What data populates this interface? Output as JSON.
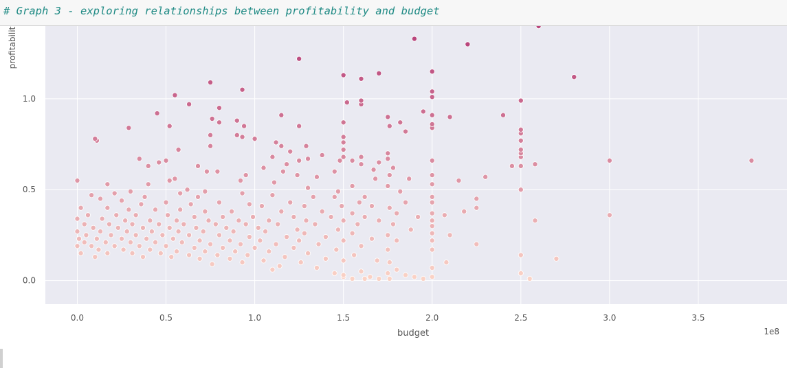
{
  "notebook": {
    "cell_comment": "# Graph 3 - exploring relationships between profitability and budget"
  },
  "colors": {
    "plot_background": "#eaeaf2",
    "grid": "#ffffff",
    "low_value_color": "#fbd3c6",
    "high_value_color": "#b9467c",
    "marker_edge": "#ffffff"
  },
  "chart_data": {
    "type": "scatter",
    "title": "",
    "xlabel": "budget",
    "ylabel": "profitability",
    "x_offset_label": "1e8",
    "x_unit_multiplier": 100000000,
    "xlim": [
      -0.18,
      4.0
    ],
    "ylim": [
      -0.13,
      1.4
    ],
    "x_ticks": [
      0.0,
      0.5,
      1.0,
      1.5,
      2.0,
      2.5,
      3.0,
      3.5
    ],
    "x_tick_labels": [
      "0.0",
      "0.5",
      "1.0",
      "1.5",
      "2.0",
      "2.5",
      "3.0",
      "3.5"
    ],
    "y_ticks": [
      0.0,
      0.5,
      1.0
    ],
    "y_tick_labels": [
      "0.0",
      "0.5",
      "1.0"
    ],
    "grid": true,
    "hue": "profitability",
    "points": [
      [
        2.6,
        1.4
      ],
      [
        1.9,
        1.33
      ],
      [
        2.2,
        1.3
      ],
      [
        1.25,
        1.22
      ],
      [
        1.7,
        1.14
      ],
      [
        1.5,
        1.13
      ],
      [
        2.0,
        1.15
      ],
      [
        2.8,
        1.12
      ],
      [
        1.6,
        1.11
      ],
      [
        0.75,
        1.09
      ],
      [
        0.93,
        1.05
      ],
      [
        2.0,
        1.04
      ],
      [
        0.55,
        1.02
      ],
      [
        2.0,
        1.01
      ],
      [
        1.6,
        0.99
      ],
      [
        2.5,
        0.99
      ],
      [
        1.52,
        0.98
      ],
      [
        1.6,
        0.97
      ],
      [
        0.63,
        0.97
      ],
      [
        0.8,
        0.95
      ],
      [
        1.95,
        0.93
      ],
      [
        0.45,
        0.92
      ],
      [
        1.15,
        0.91
      ],
      [
        2.4,
        0.91
      ],
      [
        2.0,
        0.91
      ],
      [
        1.75,
        0.9
      ],
      [
        2.1,
        0.9
      ],
      [
        0.76,
        0.89
      ],
      [
        0.9,
        0.88
      ],
      [
        0.8,
        0.87
      ],
      [
        1.82,
        0.87
      ],
      [
        2.0,
        0.86
      ],
      [
        1.25,
        0.85
      ],
      [
        1.5,
        0.87
      ],
      [
        0.52,
        0.85
      ],
      [
        0.94,
        0.85
      ],
      [
        1.76,
        0.85
      ],
      [
        0.29,
        0.84
      ],
      [
        2.0,
        0.84
      ],
      [
        2.5,
        0.83
      ],
      [
        1.85,
        0.82
      ],
      [
        2.5,
        0.81
      ],
      [
        0.9,
        0.8
      ],
      [
        0.75,
        0.8
      ],
      [
        0.93,
        0.79
      ],
      [
        1.0,
        0.78
      ],
      [
        1.5,
        0.79
      ],
      [
        0.1,
        0.78
      ],
      [
        0.11,
        0.77
      ],
      [
        2.5,
        0.77
      ],
      [
        1.5,
        0.76
      ],
      [
        1.12,
        0.76
      ],
      [
        0.75,
        0.74
      ],
      [
        1.15,
        0.74
      ],
      [
        1.29,
        0.74
      ],
      [
        1.2,
        0.71
      ],
      [
        1.5,
        0.72
      ],
      [
        2.5,
        0.72
      ],
      [
        1.75,
        0.7
      ],
      [
        1.1,
        0.68
      ],
      [
        2.5,
        0.7
      ],
      [
        0.57,
        0.72
      ],
      [
        1.5,
        0.68
      ],
      [
        1.38,
        0.69
      ],
      [
        1.48,
        0.66
      ],
      [
        2.5,
        0.68
      ],
      [
        1.6,
        0.68
      ],
      [
        1.75,
        0.67
      ],
      [
        2.0,
        0.66
      ],
      [
        3.0,
        0.66
      ],
      [
        3.8,
        0.66
      ],
      [
        1.55,
        0.66
      ],
      [
        1.3,
        0.67
      ],
      [
        1.25,
        0.66
      ],
      [
        0.46,
        0.65
      ],
      [
        0.5,
        0.66
      ],
      [
        0.35,
        0.67
      ],
      [
        1.18,
        0.64
      ],
      [
        1.7,
        0.65
      ],
      [
        0.4,
        0.63
      ],
      [
        0.68,
        0.63
      ],
      [
        2.45,
        0.63
      ],
      [
        2.5,
        0.63
      ],
      [
        2.58,
        0.64
      ],
      [
        1.78,
        0.62
      ],
      [
        1.6,
        0.64
      ],
      [
        1.05,
        0.62
      ],
      [
        1.67,
        0.61
      ],
      [
        0.73,
        0.6
      ],
      [
        1.45,
        0.6
      ],
      [
        0.79,
        0.6
      ],
      [
        1.16,
        0.6
      ],
      [
        0.95,
        0.58
      ],
      [
        1.76,
        0.58
      ],
      [
        2.0,
        0.58
      ],
      [
        1.24,
        0.58
      ],
      [
        1.35,
        0.57
      ],
      [
        2.3,
        0.57
      ],
      [
        0.55,
        0.56
      ],
      [
        1.68,
        0.56
      ],
      [
        1.87,
        0.56
      ],
      [
        2.15,
        0.55
      ],
      [
        0.52,
        0.55
      ],
      [
        0.92,
        0.55
      ],
      [
        1.11,
        0.54
      ],
      [
        0.0,
        0.55
      ],
      [
        0.17,
        0.53
      ],
      [
        0.4,
        0.53
      ],
      [
        2.0,
        0.53
      ],
      [
        1.75,
        0.52
      ],
      [
        0.62,
        0.5
      ],
      [
        1.55,
        0.52
      ],
      [
        1.3,
        0.51
      ],
      [
        0.3,
        0.49
      ],
      [
        0.72,
        0.49
      ],
      [
        1.47,
        0.49
      ],
      [
        1.82,
        0.49
      ],
      [
        2.5,
        0.5
      ],
      [
        0.58,
        0.48
      ],
      [
        0.93,
        0.48
      ],
      [
        1.1,
        0.47
      ],
      [
        1.33,
        0.46
      ],
      [
        0.21,
        0.48
      ],
      [
        0.08,
        0.47
      ],
      [
        0.38,
        0.46
      ],
      [
        0.68,
        0.46
      ],
      [
        1.45,
        0.46
      ],
      [
        1.62,
        0.46
      ],
      [
        2.0,
        0.46
      ],
      [
        2.25,
        0.45
      ],
      [
        0.13,
        0.45
      ],
      [
        0.25,
        0.44
      ],
      [
        0.5,
        0.43
      ],
      [
        0.8,
        0.43
      ],
      [
        1.2,
        0.43
      ],
      [
        1.59,
        0.43
      ],
      [
        1.85,
        0.43
      ],
      [
        2.0,
        0.43
      ],
      [
        0.36,
        0.42
      ],
      [
        0.64,
        0.42
      ],
      [
        0.97,
        0.42
      ],
      [
        1.04,
        0.41
      ],
      [
        1.28,
        0.41
      ],
      [
        1.49,
        0.41
      ],
      [
        1.66,
        0.41
      ],
      [
        1.76,
        0.4
      ],
      [
        2.25,
        0.4
      ],
      [
        0.02,
        0.4
      ],
      [
        0.17,
        0.4
      ],
      [
        0.29,
        0.39
      ],
      [
        0.44,
        0.39
      ],
      [
        0.58,
        0.39
      ],
      [
        0.72,
        0.38
      ],
      [
        0.87,
        0.38
      ],
      [
        1.15,
        0.38
      ],
      [
        1.38,
        0.38
      ],
      [
        1.55,
        0.37
      ],
      [
        1.8,
        0.37
      ],
      [
        2.0,
        0.37
      ],
      [
        2.18,
        0.38
      ],
      [
        0.06,
        0.36
      ],
      [
        0.22,
        0.36
      ],
      [
        0.33,
        0.36
      ],
      [
        0.51,
        0.36
      ],
      [
        0.66,
        0.35
      ],
      [
        0.82,
        0.35
      ],
      [
        0.99,
        0.35
      ],
      [
        1.22,
        0.35
      ],
      [
        1.43,
        0.35
      ],
      [
        1.62,
        0.35
      ],
      [
        1.92,
        0.35
      ],
      [
        3.0,
        0.36
      ],
      [
        2.07,
        0.36
      ],
      [
        0.0,
        0.34
      ],
      [
        0.14,
        0.34
      ],
      [
        0.27,
        0.33
      ],
      [
        0.41,
        0.33
      ],
      [
        0.56,
        0.33
      ],
      [
        0.74,
        0.33
      ],
      [
        0.91,
        0.33
      ],
      [
        1.08,
        0.33
      ],
      [
        1.29,
        0.33
      ],
      [
        1.5,
        0.33
      ],
      [
        1.7,
        0.33
      ],
      [
        2.0,
        0.33
      ],
      [
        2.58,
        0.33
      ],
      [
        0.04,
        0.31
      ],
      [
        0.18,
        0.31
      ],
      [
        0.31,
        0.31
      ],
      [
        0.46,
        0.31
      ],
      [
        0.6,
        0.31
      ],
      [
        0.78,
        0.31
      ],
      [
        0.95,
        0.31
      ],
      [
        1.13,
        0.31
      ],
      [
        1.34,
        0.31
      ],
      [
        1.58,
        0.31
      ],
      [
        1.78,
        0.31
      ],
      [
        2.0,
        0.3
      ],
      [
        0.09,
        0.29
      ],
      [
        0.23,
        0.29
      ],
      [
        0.37,
        0.29
      ],
      [
        0.52,
        0.29
      ],
      [
        0.67,
        0.29
      ],
      [
        0.84,
        0.29
      ],
      [
        1.02,
        0.29
      ],
      [
        1.24,
        0.28
      ],
      [
        1.47,
        0.28
      ],
      [
        1.88,
        0.28
      ],
      [
        2.1,
        0.25
      ],
      [
        0.0,
        0.27
      ],
      [
        0.13,
        0.27
      ],
      [
        0.28,
        0.27
      ],
      [
        0.42,
        0.27
      ],
      [
        0.57,
        0.27
      ],
      [
        0.71,
        0.27
      ],
      [
        0.88,
        0.27
      ],
      [
        1.06,
        0.27
      ],
      [
        1.28,
        0.26
      ],
      [
        1.55,
        0.26
      ],
      [
        1.75,
        0.25
      ],
      [
        2.0,
        0.26
      ],
      [
        0.05,
        0.25
      ],
      [
        0.19,
        0.25
      ],
      [
        0.33,
        0.25
      ],
      [
        0.48,
        0.25
      ],
      [
        0.63,
        0.25
      ],
      [
        0.8,
        0.25
      ],
      [
        0.97,
        0.24
      ],
      [
        1.18,
        0.24
      ],
      [
        1.4,
        0.24
      ],
      [
        1.66,
        0.23
      ],
      [
        0.01,
        0.23
      ],
      [
        0.11,
        0.23
      ],
      [
        0.25,
        0.23
      ],
      [
        0.39,
        0.23
      ],
      [
        0.54,
        0.23
      ],
      [
        0.69,
        0.22
      ],
      [
        0.86,
        0.22
      ],
      [
        1.03,
        0.22
      ],
      [
        1.25,
        0.22
      ],
      [
        1.5,
        0.22
      ],
      [
        1.8,
        0.22
      ],
      [
        2.0,
        0.22
      ],
      [
        2.25,
        0.2
      ],
      [
        0.04,
        0.21
      ],
      [
        0.16,
        0.21
      ],
      [
        0.3,
        0.21
      ],
      [
        0.44,
        0.21
      ],
      [
        0.59,
        0.21
      ],
      [
        0.75,
        0.2
      ],
      [
        0.92,
        0.2
      ],
      [
        1.12,
        0.2
      ],
      [
        1.36,
        0.2
      ],
      [
        1.6,
        0.19
      ],
      [
        0.0,
        0.19
      ],
      [
        0.08,
        0.19
      ],
      [
        0.21,
        0.19
      ],
      [
        0.35,
        0.19
      ],
      [
        0.5,
        0.19
      ],
      [
        0.66,
        0.18
      ],
      [
        0.82,
        0.18
      ],
      [
        1.0,
        0.18
      ],
      [
        1.22,
        0.18
      ],
      [
        1.46,
        0.17
      ],
      [
        1.75,
        0.17
      ],
      [
        2.0,
        0.17
      ],
      [
        0.12,
        0.17
      ],
      [
        0.26,
        0.17
      ],
      [
        0.41,
        0.17
      ],
      [
        0.56,
        0.16
      ],
      [
        0.72,
        0.16
      ],
      [
        0.89,
        0.16
      ],
      [
        1.08,
        0.16
      ],
      [
        1.3,
        0.15
      ],
      [
        1.56,
        0.14
      ],
      [
        0.02,
        0.15
      ],
      [
        0.17,
        0.15
      ],
      [
        0.31,
        0.15
      ],
      [
        0.47,
        0.15
      ],
      [
        0.63,
        0.14
      ],
      [
        0.79,
        0.14
      ],
      [
        0.96,
        0.14
      ],
      [
        1.17,
        0.13
      ],
      [
        1.4,
        0.12
      ],
      [
        2.5,
        0.14
      ],
      [
        0.1,
        0.13
      ],
      [
        0.37,
        0.13
      ],
      [
        0.53,
        0.13
      ],
      [
        0.69,
        0.12
      ],
      [
        0.86,
        0.12
      ],
      [
        1.05,
        0.11
      ],
      [
        1.26,
        0.1
      ],
      [
        1.5,
        0.11
      ],
      [
        1.69,
        0.11
      ],
      [
        0.93,
        0.1
      ],
      [
        0.76,
        0.09
      ],
      [
        1.14,
        0.08
      ],
      [
        1.76,
        0.1
      ],
      [
        2.08,
        0.1
      ],
      [
        1.35,
        0.07
      ],
      [
        2.7,
        0.12
      ],
      [
        1.8,
        0.06
      ],
      [
        1.1,
        0.06
      ],
      [
        2.0,
        0.07
      ],
      [
        1.6,
        0.05
      ],
      [
        1.45,
        0.04
      ],
      [
        1.75,
        0.04
      ],
      [
        2.5,
        0.04
      ],
      [
        1.5,
        0.03
      ],
      [
        1.65,
        0.02
      ],
      [
        1.9,
        0.02
      ],
      [
        2.0,
        0.02
      ],
      [
        1.55,
        0.01
      ],
      [
        1.7,
        0.01
      ],
      [
        1.76,
        0.01
      ],
      [
        1.95,
        0.01
      ],
      [
        2.55,
        0.01
      ],
      [
        1.5,
        0.02
      ],
      [
        1.62,
        0.01
      ],
      [
        1.85,
        0.03
      ]
    ]
  }
}
